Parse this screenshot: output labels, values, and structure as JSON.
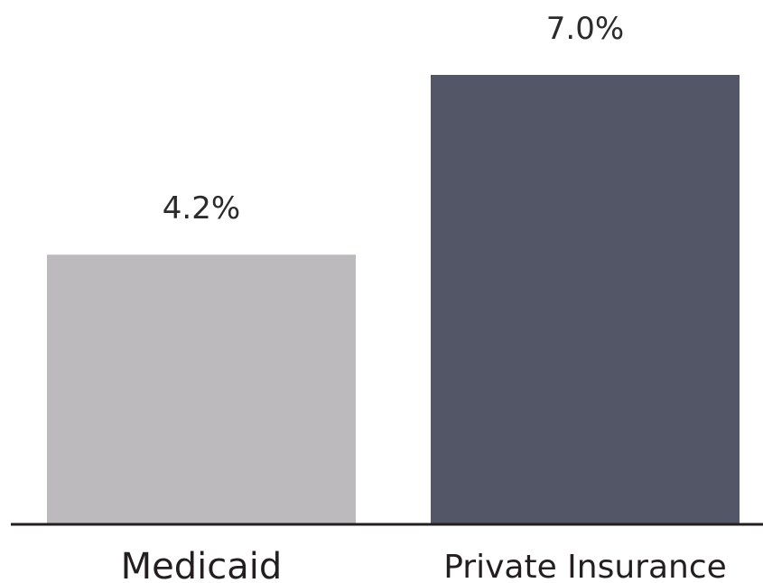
{
  "chart_data": {
    "type": "bar",
    "categories": [
      "Medicaid",
      "Private Insurance"
    ],
    "values": [
      4.2,
      7.0
    ],
    "data_labels": [
      "4.2%",
      "7.0%"
    ],
    "colors": [
      "#bdbabd",
      "#525666"
    ],
    "baseline_color": "#231f20",
    "ylim": [
      0,
      7.0
    ],
    "grid": false,
    "legend": "none"
  }
}
